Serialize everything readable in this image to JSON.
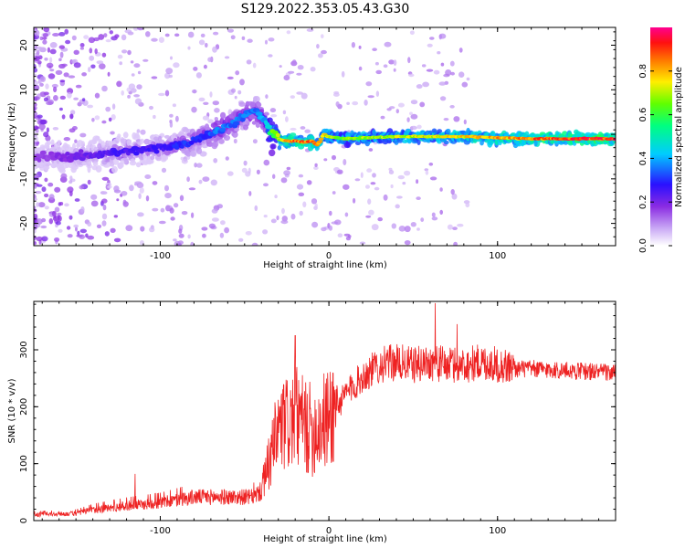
{
  "title": "S129.2022.353.05.43.G30",
  "chart_data": [
    {
      "type": "heatmap",
      "xlabel": "Height of straight line (km)",
      "ylabel": "Frequency (Hz)",
      "xlim": [
        -175,
        170
      ],
      "ylim": [
        -25,
        24
      ],
      "x_ticks": [
        -100,
        0,
        100
      ],
      "x_tick_labels": [
        "-100",
        "0",
        "100"
      ],
      "y_ticks": [
        -20,
        -10,
        0,
        10,
        20
      ],
      "y_tick_labels": [
        "-20",
        "-10",
        "0",
        "10",
        "20"
      ],
      "colorbar": {
        "label": "Normalized spectral amplitude",
        "range": [
          0,
          1
        ],
        "ticks": [
          0.0,
          0.2,
          0.4,
          0.6,
          0.8
        ],
        "tick_labels": [
          "0.0",
          "0.2",
          "0.4",
          "0.6",
          "0.8"
        ]
      },
      "ridge": {
        "x": [
          -175,
          -150,
          -125,
          -100,
          -85,
          -75,
          -65,
          -55,
          -47,
          -42,
          -38,
          -34,
          -30,
          -25,
          -20,
          -15,
          -10,
          -7,
          -3,
          0,
          10,
          40,
          80,
          120,
          150,
          170
        ],
        "freq_hz": [
          -5,
          -5,
          -4,
          -3,
          -2,
          -0.5,
          1,
          3,
          5,
          5,
          3,
          0,
          -1,
          -1.5,
          -1.5,
          -1.8,
          -1.5,
          -2.5,
          0,
          -0.5,
          -1,
          -0.5,
          -0.5,
          -1,
          -1,
          -1
        ],
        "amplitude": [
          0.15,
          0.2,
          0.25,
          0.25,
          0.3,
          0.3,
          0.35,
          0.35,
          0.35,
          0.35,
          0.4,
          0.6,
          0.7,
          0.85,
          0.85,
          0.85,
          0.85,
          0.8,
          0.75,
          0.7,
          0.65,
          0.7,
          0.75,
          0.85,
          0.9,
          0.9
        ]
      },
      "grid": false
    },
    {
      "type": "line",
      "xlabel": "Height of straight line (km)",
      "ylabel": "SNR (10 * v/v)",
      "xlim": [
        -175,
        170
      ],
      "ylim": [
        0,
        385
      ],
      "x_ticks": [
        -100,
        0,
        100
      ],
      "x_tick_labels": [
        "-100",
        "0",
        "100"
      ],
      "y_ticks": [
        0,
        100,
        200,
        300
      ],
      "y_tick_labels": [
        "0",
        "100",
        "200",
        "300"
      ],
      "series_color": "#ee2222",
      "envelope": {
        "x": [
          -175,
          -150,
          -140,
          -120,
          -100,
          -80,
          -60,
          -45,
          -40,
          -35,
          -30,
          -20,
          -10,
          0,
          10,
          20,
          30,
          40,
          50,
          60,
          70,
          80,
          90,
          100,
          110,
          120,
          140,
          160,
          170
        ],
        "snr": [
          10,
          12,
          18,
          25,
          30,
          40,
          40,
          40,
          50,
          100,
          150,
          170,
          150,
          170,
          220,
          250,
          270,
          275,
          270,
          275,
          270,
          270,
          275,
          270,
          265,
          265,
          262,
          260,
          258
        ]
      },
      "spikes": [
        {
          "x": -115,
          "snr": 82
        },
        {
          "x": -20,
          "snr": 325
        },
        {
          "x": 63,
          "snr": 382
        },
        {
          "x": 76,
          "snr": 345
        }
      ],
      "grid": false
    }
  ]
}
